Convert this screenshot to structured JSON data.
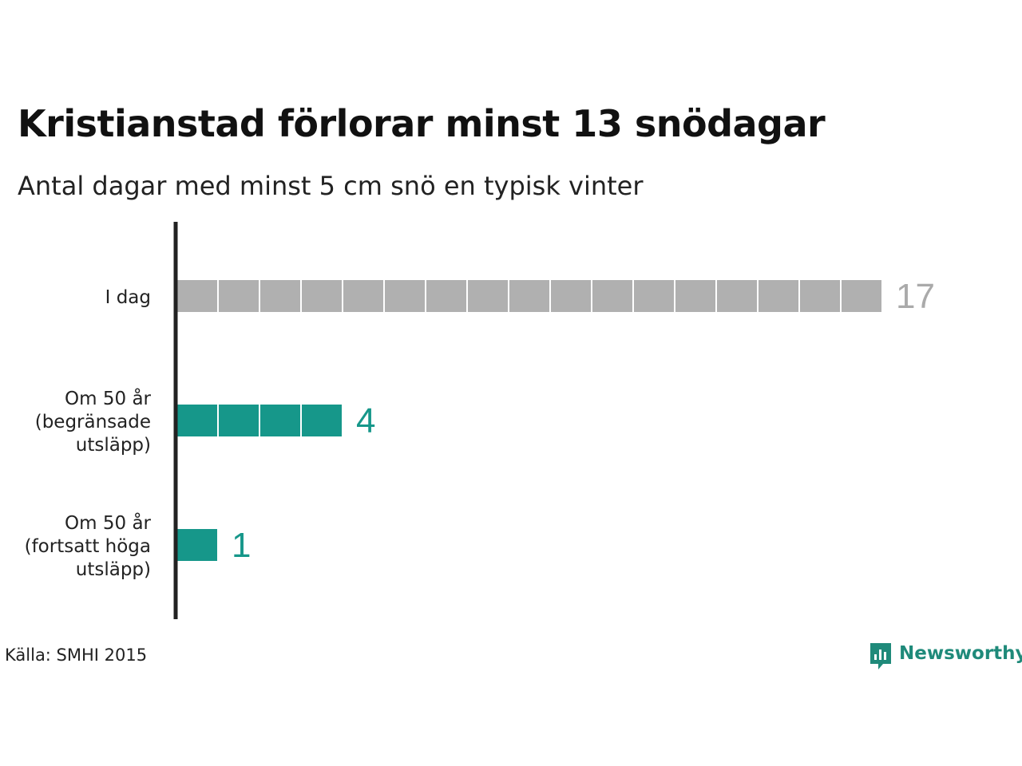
{
  "title": "Kristianstad förlorar minst 13 snödagar",
  "subtitle": "Antal dagar med minst 5 cm snö en typisk vinter",
  "source": "Källa: SMHI 2015",
  "logo": {
    "text": "Newsworthy",
    "icon": "newsworthy-chart-bubble-icon"
  },
  "colors": {
    "today": "#b0b0b0",
    "future": "#16978a",
    "axis": "#222222",
    "value_today": "#aaaaaa",
    "value_future": "#16978a"
  },
  "chart_data": {
    "type": "bar",
    "orientation": "horizontal",
    "style": "unit-blocks",
    "title": "Kristianstad förlorar minst 13 snödagar",
    "subtitle": "Antal dagar med minst 5 cm snö en typisk vinter",
    "categories": [
      [
        "I dag"
      ],
      [
        "Om 50 år",
        "(begränsade",
        "utsläpp)"
      ],
      [
        "Om 50 år",
        "(fortsatt höga",
        "utsläpp)"
      ]
    ],
    "values": [
      17,
      4,
      1
    ],
    "value_labels": [
      "17",
      "4",
      "1"
    ],
    "grid": false,
    "legend": "none"
  }
}
